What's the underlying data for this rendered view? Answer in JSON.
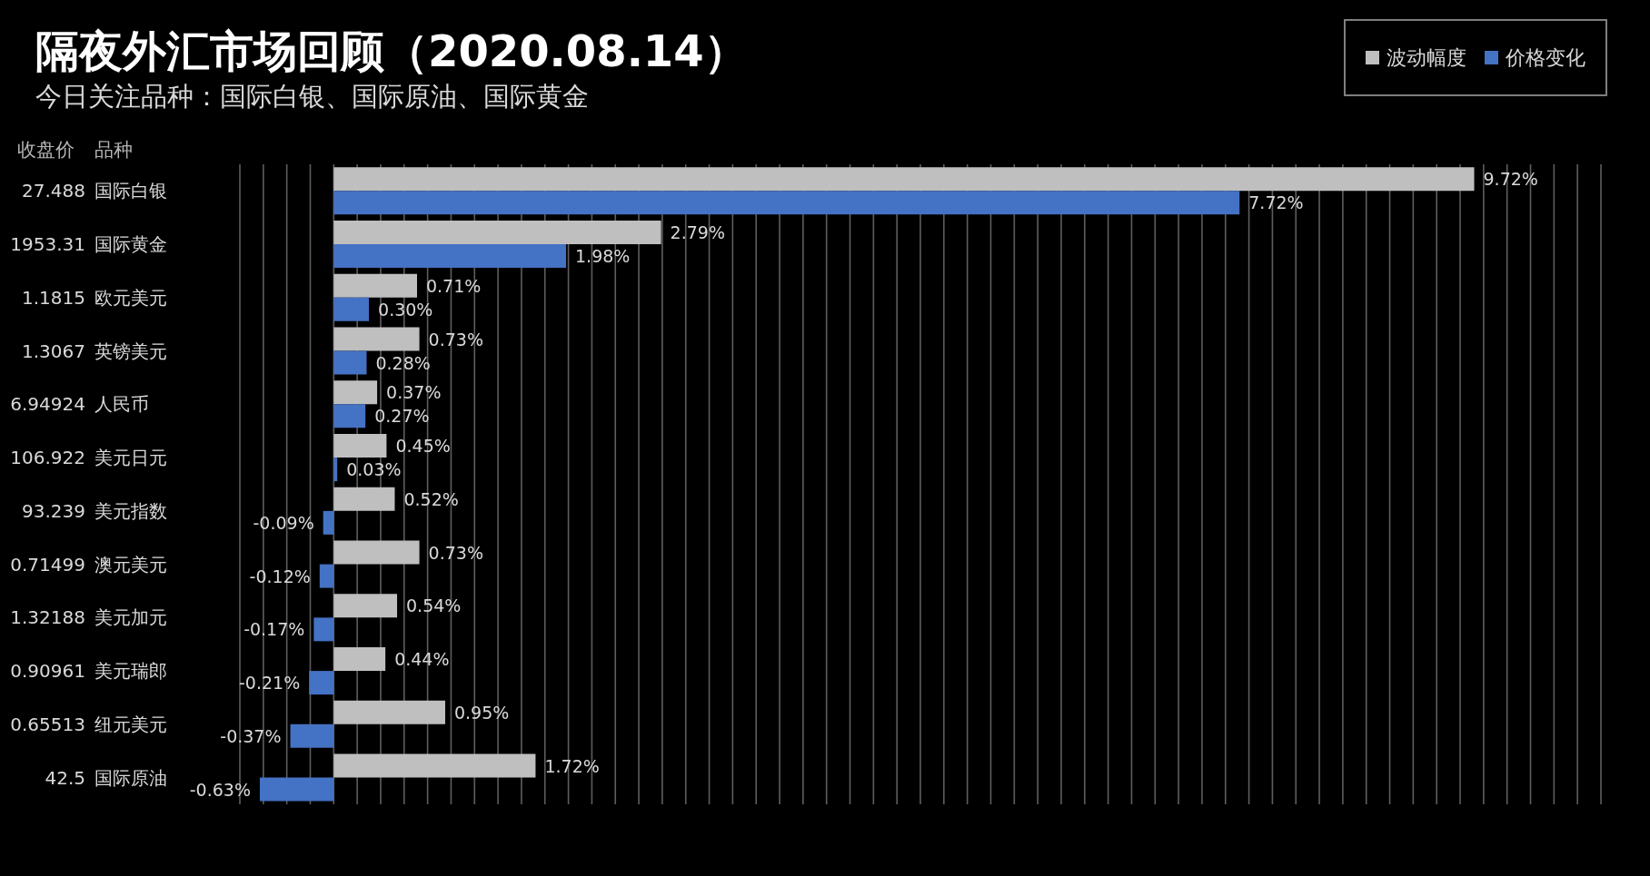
{
  "chart_data": {
    "type": "bar",
    "orientation": "horizontal",
    "title": "隔夜外汇市场回顾（2020.08.14）",
    "subtitle": "今日关注品种：国际白银、国际原油、国际黄金",
    "annotations": [
      "收盘价",
      "品种"
    ],
    "categories": [
      "国际白银",
      "国际黄金",
      "欧元美元",
      "英镑美元",
      "人民币",
      "美元日元",
      "美元指数",
      "澳元美元",
      "美元加元",
      "美元瑞郎",
      "纽元美元",
      "国际原油"
    ],
    "y2_categories": [
      "27.488",
      "1953.31",
      "1.1815",
      "1.3067",
      "6.94924",
      "106.922",
      "93.239",
      "0.71499",
      "1.32188",
      "0.90961",
      "0.65513",
      "42.5"
    ],
    "series": [
      {
        "name": "波动幅度",
        "color": "#bfbfbf",
        "values": [
          9.72,
          2.79,
          0.71,
          0.73,
          0.37,
          0.45,
          0.52,
          0.73,
          0.54,
          0.44,
          0.95,
          1.72
        ],
        "value_labels": [
          "9.72%",
          "2.79%",
          "0.71%",
          "0.73%",
          "0.37%",
          "0.45%",
          "0.52%",
          "0.73%",
          "0.54%",
          "0.44%",
          "0.95%",
          "1.72%"
        ]
      },
      {
        "name": "价格变化",
        "color": "#4472c4",
        "values": [
          7.72,
          1.98,
          0.3,
          0.28,
          0.27,
          0.03,
          -0.09,
          -0.12,
          -0.17,
          -0.21,
          -0.37,
          -0.63
        ],
        "value_labels": [
          "7.72%",
          "1.98%",
          "0.30%",
          "0.28%",
          "0.27%",
          "0.03%",
          "-0.09%",
          "-0.12%",
          "-0.17%",
          "-0.21%",
          "-0.37%",
          "-0.63%"
        ]
      }
    ],
    "grid": "x",
    "legend": "top right",
    "tick_labels": "y"
  }
}
